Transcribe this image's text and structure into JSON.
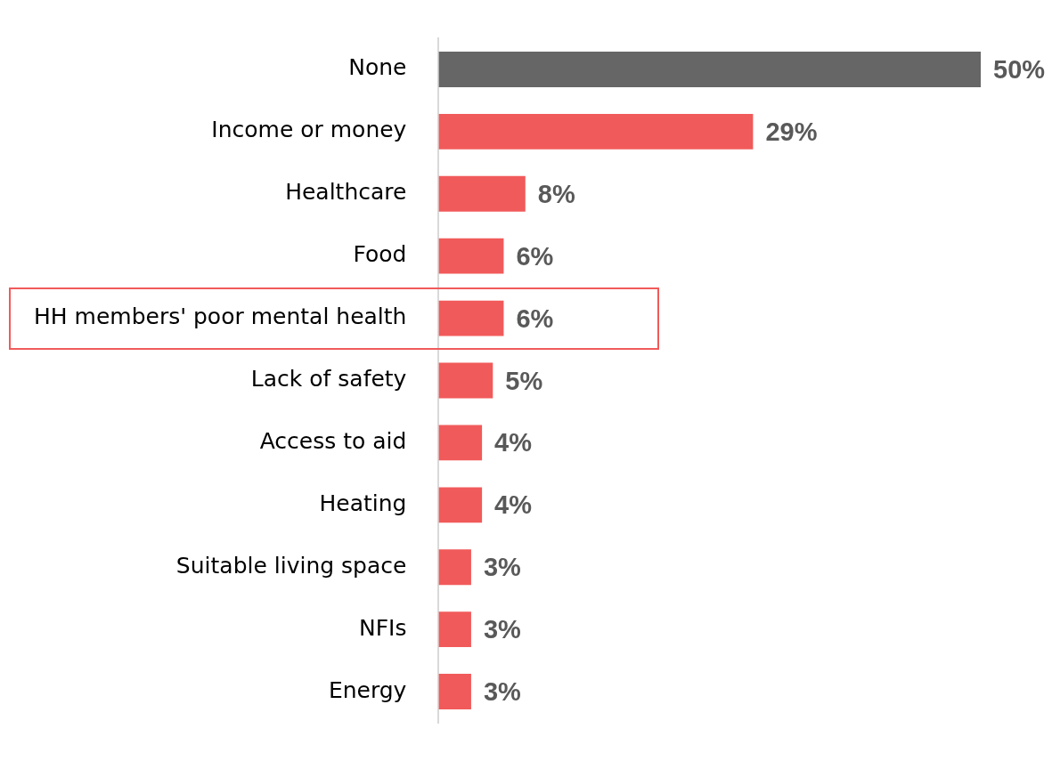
{
  "chart_data": {
    "type": "bar",
    "orientation": "horizontal",
    "categories": [
      "None",
      "Income or money",
      "Healthcare",
      "Food",
      "HH members' poor mental health",
      "Lack of safety",
      "Access to aid",
      "Heating",
      "Suitable living space",
      "NFIs",
      "Energy"
    ],
    "values": [
      50,
      29,
      8,
      6,
      6,
      5,
      4,
      4,
      3,
      3,
      3
    ],
    "colors": [
      "#666666",
      "#f15a5a",
      "#f15a5a",
      "#f15a5a",
      "#f15a5a",
      "#f15a5a",
      "#f15a5a",
      "#f15a5a",
      "#f15a5a",
      "#f15a5a",
      "#f15a5a"
    ],
    "value_labels": [
      "50%",
      "29%",
      "8%",
      "6%",
      "6%",
      "5%",
      "4%",
      "4%",
      "3%",
      "3%",
      "3%"
    ],
    "legend": false
  }
}
